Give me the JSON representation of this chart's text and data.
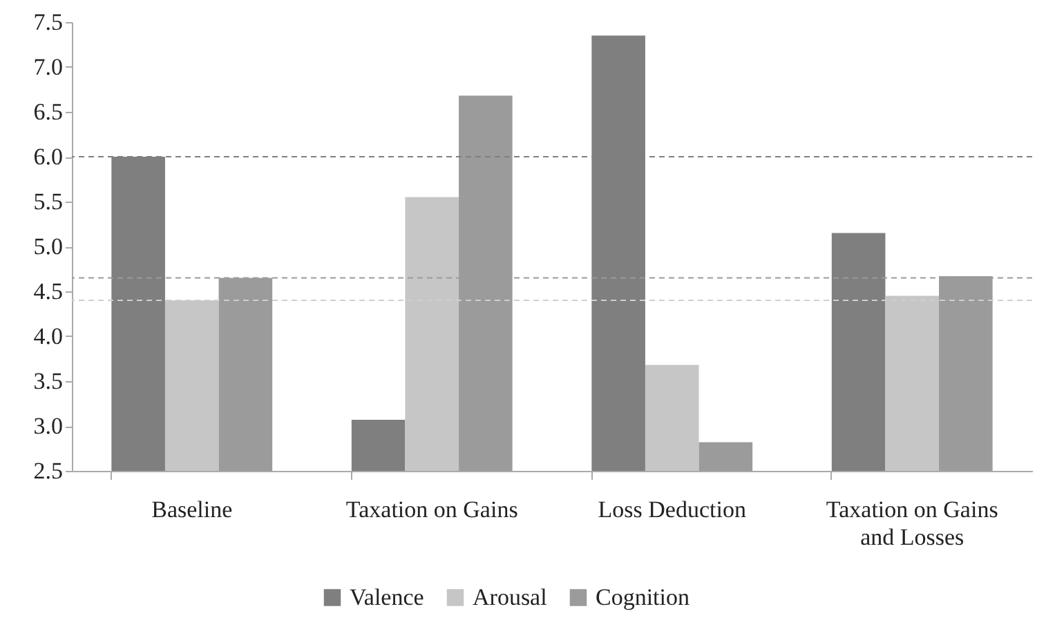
{
  "chart_data": {
    "type": "bar",
    "categories": [
      "Baseline",
      "Taxation on Gains",
      "Loss Deduction",
      "Taxation on Gains and Losses"
    ],
    "series": [
      {
        "name": "Valence",
        "color": "#7f7f7f",
        "values": [
          6.0,
          3.07,
          7.35,
          5.15
        ]
      },
      {
        "name": "Arousal",
        "color": "#c5c6c5",
        "values": [
          4.4,
          5.55,
          3.68,
          4.45
        ]
      },
      {
        "name": "Cognition",
        "color": "#9a9b9a",
        "values": [
          4.65,
          6.68,
          2.82,
          4.67
        ]
      }
    ],
    "ylim": [
      2.5,
      7.5
    ],
    "yticks": [
      2.5,
      {
        "value": 3,
        "label": "3.0"
      },
      3.5,
      {
        "value": 4,
        "label": "4.0"
      },
      4.5,
      {
        "value": 5,
        "label": "5.0"
      },
      5.5,
      {
        "value": 6,
        "label": "6.0"
      },
      6.5,
      {
        "value": 7,
        "label": "7.0"
      },
      7.5
    ],
    "ref_lines": [
      {
        "axis": "y",
        "value": 6.0,
        "color": "#7f7f7f",
        "line_style": "dashed"
      },
      {
        "axis": "y",
        "value": 4.65,
        "color": "#9a9a9a",
        "line_style": "dashed"
      },
      {
        "axis": "y",
        "value": 4.4,
        "color": "#cfcfcf",
        "line_style": "dashed"
      }
    ],
    "grid": false,
    "legend": "bottom"
  }
}
